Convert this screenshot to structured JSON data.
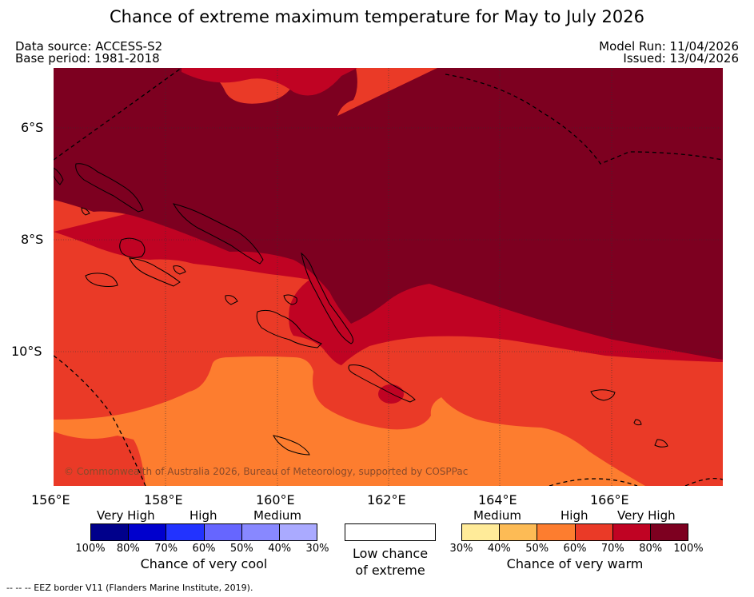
{
  "title": "Chance of extreme maximum temperature for May to July 2026",
  "header": {
    "data_source": "Data source: ACCESS-S2",
    "base_period": "Base period: 1981-2018",
    "model_run": "Model Run: 11/04/2026",
    "issued": "Issued: 13/04/2026"
  },
  "map": {
    "latitude_labels": [
      "6°S",
      "8°S",
      "10°S"
    ],
    "longitude_labels": [
      "156°E",
      "158°E",
      "160°E",
      "162°E",
      "164°E",
      "166°E"
    ],
    "copyright": "© Commonwealth of Australia 2026, Bureau of Meteorology, supported by COSPPac"
  },
  "legend": {
    "cool": {
      "headers": [
        "Very High",
        "High",
        "Medium"
      ],
      "colors": [
        "#00008b",
        "#0000cd",
        "#2233ff",
        "#6666ff",
        "#8888ff",
        "#aaaaff"
      ],
      "ticks": [
        "100%",
        "80%",
        "70%",
        "60%",
        "50%",
        "40%",
        "30%"
      ],
      "caption": "Chance of very cool"
    },
    "low": {
      "line1": "Low chance",
      "line2": "of extreme"
    },
    "warm": {
      "headers": [
        "Medium",
        "High",
        "Very High"
      ],
      "colors": [
        "#ffeb99",
        "#fdbb55",
        "#fd7d2f",
        "#ea3a27",
        "#c00323",
        "#7d0020"
      ],
      "ticks": [
        "30%",
        "40%",
        "50%",
        "60%",
        "70%",
        "80%",
        "100%"
      ],
      "caption": "Chance of very warm"
    }
  },
  "footer": "--  --  -- EEZ border V11 (Flanders Marine Institute, 2019)."
}
